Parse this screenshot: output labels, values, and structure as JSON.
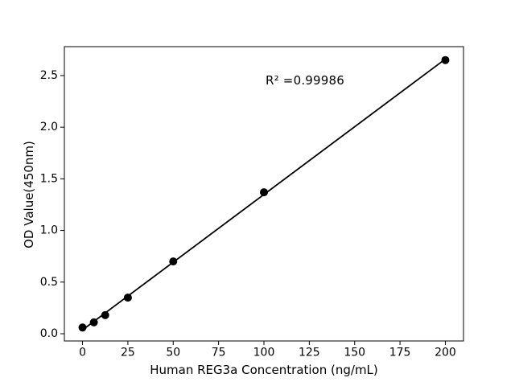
{
  "chart_data": {
    "type": "scatter",
    "title": "",
    "xlabel": "Human REG3a Concentration (ng/mL)",
    "ylabel": "OD Value(450nm)",
    "annotation": {
      "text": "R² =0.99986"
    },
    "x": [
      0,
      6.25,
      12.5,
      25,
      50,
      100,
      200
    ],
    "y": [
      0.06,
      0.11,
      0.18,
      0.35,
      0.7,
      1.37,
      2.65
    ],
    "fit_line": {
      "x": [
        0,
        200
      ],
      "y": [
        0.037,
        2.66
      ]
    },
    "xticks": [
      0,
      25,
      50,
      75,
      100,
      125,
      150,
      175,
      200
    ],
    "xtick_labels": [
      "0",
      "25",
      "50",
      "75",
      "100",
      "125",
      "150",
      "175",
      "200"
    ],
    "yticks": [
      0.0,
      0.5,
      1.0,
      1.5,
      2.0,
      2.5
    ],
    "ytick_labels": [
      "0.0",
      "0.5",
      "1.0",
      "1.5",
      "2.0",
      "2.5"
    ],
    "xlim": [
      -10,
      210
    ],
    "ylim": [
      -0.07,
      2.78
    ],
    "grid": false,
    "legend": null,
    "marker_color": "#000000",
    "line_color": "#000000",
    "axis_color": "#000000",
    "background": "#ffffff"
  }
}
